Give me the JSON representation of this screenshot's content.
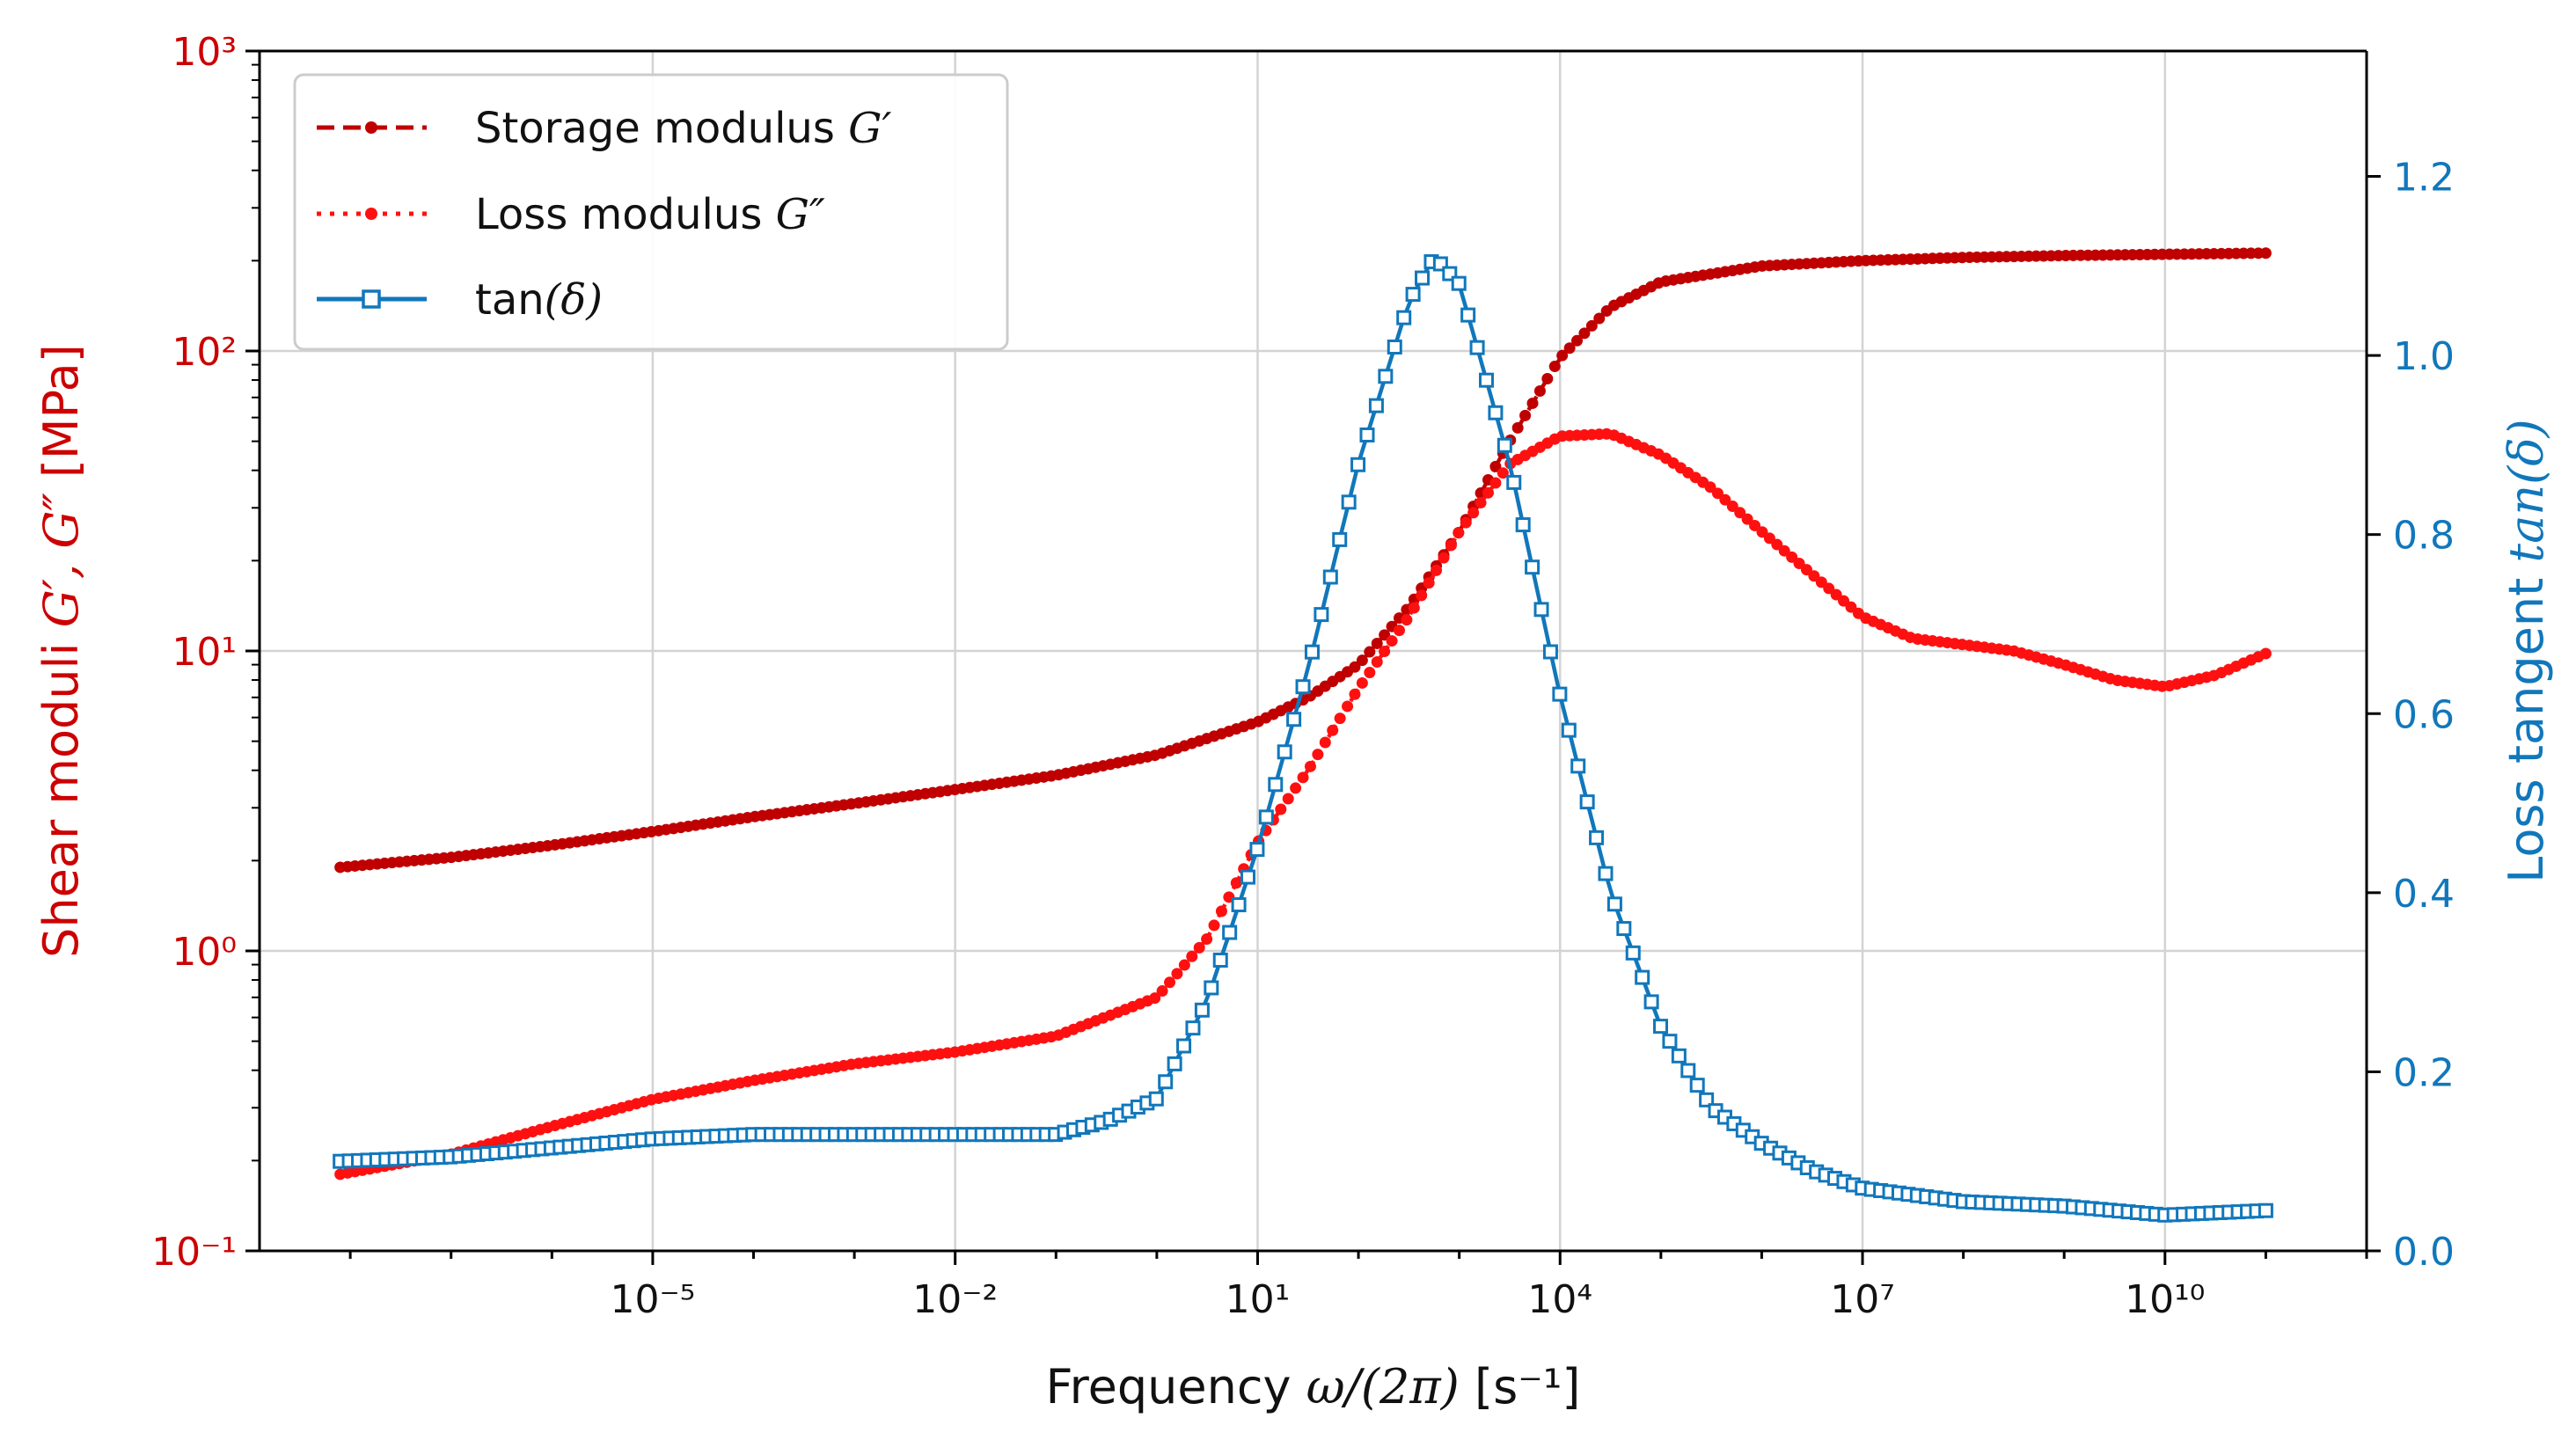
{
  "chart_data": {
    "type": "line",
    "title": "",
    "xlabel": {
      "prefix": "Frequency ",
      "math": "ω/(2π)",
      "suffix": " [s⁻¹]"
    },
    "ylabel_left": {
      "prefix": "Shear moduli ",
      "math": "G′, G″",
      "suffix": " [MPa]"
    },
    "ylabel_right": {
      "prefix": "Loss tangent ",
      "math": "tan(δ)",
      "suffix": ""
    },
    "x_scale": "log",
    "xlim_log10": [
      -8.9,
      12.0
    ],
    "ylim_left_log10": [
      -1,
      3
    ],
    "ylim_right": [
      0.0,
      1.34
    ],
    "x_ticks": [
      {
        "log": -5,
        "label": "10⁻⁵"
      },
      {
        "log": -2,
        "label": "10⁻²"
      },
      {
        "log": 1,
        "label": "10¹"
      },
      {
        "log": 4,
        "label": "10⁴"
      },
      {
        "log": 7,
        "label": "10⁷"
      },
      {
        "log": 10,
        "label": "10¹⁰"
      }
    ],
    "y_left_ticks": [
      {
        "log": -1,
        "label": "10⁻¹"
      },
      {
        "log": 0,
        "label": "10⁰"
      },
      {
        "log": 1,
        "label": "10¹"
      },
      {
        "log": 2,
        "label": "10²"
      },
      {
        "log": 3,
        "label": "10³"
      }
    ],
    "y_right_ticks": [
      {
        "value": 0.0,
        "label": "0.0"
      },
      {
        "value": 0.2,
        "label": "0.2"
      },
      {
        "value": 0.4,
        "label": "0.4"
      },
      {
        "value": 0.6,
        "label": "0.6"
      },
      {
        "value": 0.8,
        "label": "0.8"
      },
      {
        "value": 1.0,
        "label": "1.0"
      },
      {
        "value": 1.2,
        "label": "1.2"
      }
    ],
    "grid": true,
    "legend_position": "top-left",
    "series": [
      {
        "name": "Storage modulus G′",
        "label_prefix": "Storage modulus ",
        "label_math": "G′",
        "axis": "left",
        "color": "#c00000",
        "style": "dashed",
        "marker": "dot",
        "x_log10": [
          -8.1,
          -7,
          -6,
          -5,
          -4,
          -3,
          -2,
          -1,
          0,
          1,
          1.5,
          2,
          2.5,
          3,
          3.5,
          4,
          4.5,
          5,
          6,
          7,
          8,
          9,
          10,
          11
        ],
        "y": [
          1.9,
          2.05,
          2.25,
          2.5,
          2.8,
          3.1,
          3.45,
          3.85,
          4.5,
          5.8,
          7.0,
          9.0,
          14.0,
          25.0,
          50.0,
          95.0,
          140.0,
          170.0,
          192.0,
          200.0,
          205.0,
          208.0,
          210.0,
          212.0
        ]
      },
      {
        "name": "Loss modulus G″",
        "label_prefix": "Loss modulus ",
        "label_math": "G″",
        "axis": "left",
        "color": "#ff1010",
        "style": "dotted",
        "marker": "dot",
        "x_log10": [
          -8.1,
          -7,
          -6,
          -5,
          -4,
          -3,
          -2,
          -1,
          0,
          0.5,
          1,
          1.5,
          2,
          2.5,
          3,
          3.5,
          4,
          4.5,
          5,
          5.5,
          6,
          6.5,
          7,
          7.5,
          8,
          8.5,
          9,
          9.5,
          10,
          10.5,
          11
        ],
        "y": [
          0.18,
          0.21,
          0.26,
          0.32,
          0.37,
          0.42,
          0.46,
          0.52,
          0.7,
          1.1,
          2.3,
          4.0,
          7.5,
          13.0,
          25.0,
          42.0,
          52.0,
          53.0,
          45.0,
          35.0,
          25.0,
          18.0,
          13.0,
          11.0,
          10.5,
          10.0,
          9.0,
          8.0,
          7.6,
          8.3,
          9.8
        ]
      },
      {
        "name": "tan(δ)",
        "label_prefix": "tan",
        "label_math": "(δ)",
        "axis": "right",
        "color": "#1177bb",
        "style": "solid",
        "marker": "open-square",
        "x_log10": [
          -8.1,
          -7,
          -6,
          -5,
          -4,
          -3,
          -2,
          -1,
          -0.5,
          0,
          0.5,
          1,
          1.5,
          2,
          2.5,
          2.75,
          3,
          3.5,
          4,
          4.5,
          5,
          5.5,
          6,
          6.5,
          7,
          8,
          9,
          10,
          11
        ],
        "y": [
          0.1,
          0.105,
          0.115,
          0.125,
          0.13,
          0.13,
          0.13,
          0.13,
          0.145,
          0.17,
          0.28,
          0.45,
          0.65,
          0.88,
          1.06,
          1.11,
          1.08,
          0.88,
          0.62,
          0.4,
          0.25,
          0.16,
          0.12,
          0.09,
          0.07,
          0.055,
          0.05,
          0.04,
          0.045
        ]
      }
    ]
  }
}
